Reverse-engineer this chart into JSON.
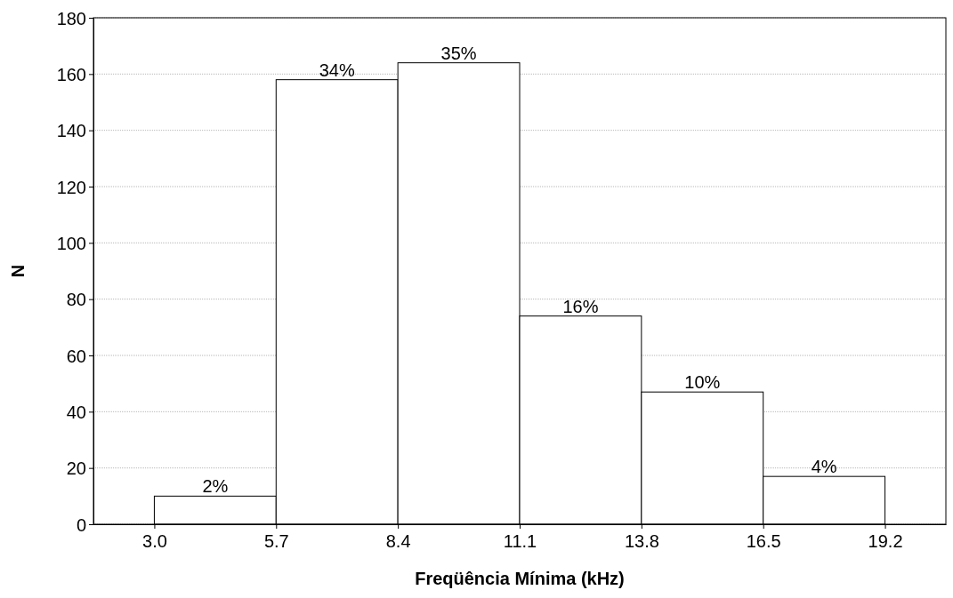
{
  "chart_data": {
    "type": "histogram",
    "xlabel": "Freqüência Mínima (kHz)",
    "ylabel": "N",
    "bins": [
      3.0,
      5.7,
      8.4,
      11.1,
      13.8,
      16.5,
      19.2
    ],
    "values": [
      10,
      158,
      164,
      74,
      47,
      17
    ],
    "annotations": [
      {
        "text": "2%",
        "x": 4.35,
        "y": 10
      },
      {
        "text": "34%",
        "x": 7.05,
        "y": 158
      },
      {
        "text": "35%",
        "x": 9.75,
        "y": 164
      },
      {
        "text": "16%",
        "x": 12.45,
        "y": 74
      },
      {
        "text": "10%",
        "x": 15.15,
        "y": 47
      },
      {
        "text": "4%",
        "x": 17.85,
        "y": 17
      }
    ],
    "color": "#ffffff",
    "xlim": [
      1.65,
      20.55
    ],
    "xticks": [
      {
        "value": 3.0,
        "label": "3.0"
      },
      {
        "value": 5.7,
        "label": "5.7"
      },
      {
        "value": 8.4,
        "label": "8.4"
      },
      {
        "value": 11.1,
        "label": "11.1"
      },
      {
        "value": 13.8,
        "label": "13.8"
      },
      {
        "value": 16.5,
        "label": "16.5"
      },
      {
        "value": 19.2,
        "label": "19.2"
      }
    ],
    "ylim": [
      0,
      180
    ],
    "yticks": [
      0,
      20,
      40,
      60,
      80,
      100,
      120,
      140,
      160,
      180
    ],
    "grid": "y"
  }
}
